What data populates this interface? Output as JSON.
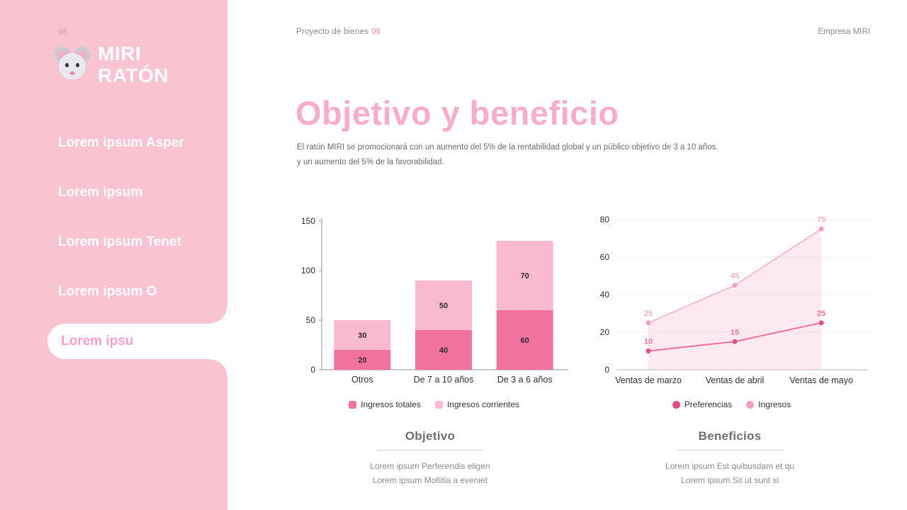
{
  "colors": {
    "sidebar_bg": "#FAC3D2",
    "title_pink": "#F9ADCB",
    "accent_dark_pink": "#F2729F",
    "accent_light_pink": "#F9BAD0",
    "active_item_text": "#F8A2C3",
    "page_number_pink": "#F48FB1"
  },
  "sidebar": {
    "watermark": "06",
    "logo": {
      "icon": "mouse-icon",
      "line1": "MIRI",
      "line2": "RATÓN"
    },
    "items": [
      {
        "label": "Lorem ipsum Asper",
        "active": false
      },
      {
        "label": "Lorem ipsum",
        "active": false
      },
      {
        "label": "Lorem ipsum Tenet",
        "active": false
      },
      {
        "label": "Lorem ipsum O",
        "active": false
      },
      {
        "label": "Lorem ipsu",
        "active": true
      }
    ]
  },
  "header": {
    "breadcrumb": "Proyecto de bienes",
    "page_number": "06",
    "company": "Empresa MIRI"
  },
  "main": {
    "title": "Objetivo y beneficio",
    "intro_line1": "El ratón MIRI se promocionará con un aumento del 5% de la rentabilidad global y un público objetivo de 3 a 10 años.",
    "intro_line2": "y un aumento del 5% de la favorabilidad."
  },
  "sections": [
    {
      "heading": "Objetivo",
      "line1": "Lorem ipsum Perferendis eligen",
      "line2": "Lorem ipsum Mollitia a eveniet"
    },
    {
      "heading": "Beneficios",
      "line1": "Lorem ipsum Est quibusdam et qu",
      "line2": "Lorem ipsum Sit ut sunt si"
    }
  ],
  "chart_data": [
    {
      "type": "bar",
      "stacked": true,
      "categories": [
        "Otros",
        "De 7 a 10 años",
        "De 3 a 6 años"
      ],
      "series": [
        {
          "name": "Ingresos totales",
          "color": "#F2729F",
          "values": [
            20,
            40,
            60
          ]
        },
        {
          "name": "Ingresos corrientes",
          "color": "#F9BAD0",
          "values": [
            30,
            50,
            70
          ]
        }
      ],
      "ylim": [
        0,
        150
      ],
      "yticks": [
        0,
        50,
        100,
        150
      ],
      "grid": false,
      "value_labels": true,
      "legend_position": "bottom"
    },
    {
      "type": "line",
      "categories": [
        "Ventas de marzo",
        "Ventas de abril",
        "Ventas de mayo"
      ],
      "series": [
        {
          "name": "Preferencias",
          "color": "#EC6F9D",
          "dot": "#DD5083",
          "label_color": "#E8719C",
          "values": [
            10,
            15,
            25
          ],
          "area": false
        },
        {
          "name": "Ingresos",
          "color": "#F8B9CE",
          "dot": "#F59FC2",
          "label_color": "#F5AFCA",
          "values": [
            25,
            45,
            75
          ],
          "area": true
        }
      ],
      "ylim": [
        0,
        80
      ],
      "yticks": [
        0,
        20,
        40,
        60,
        80
      ],
      "grid": true,
      "value_labels": true,
      "legend_position": "bottom"
    }
  ]
}
